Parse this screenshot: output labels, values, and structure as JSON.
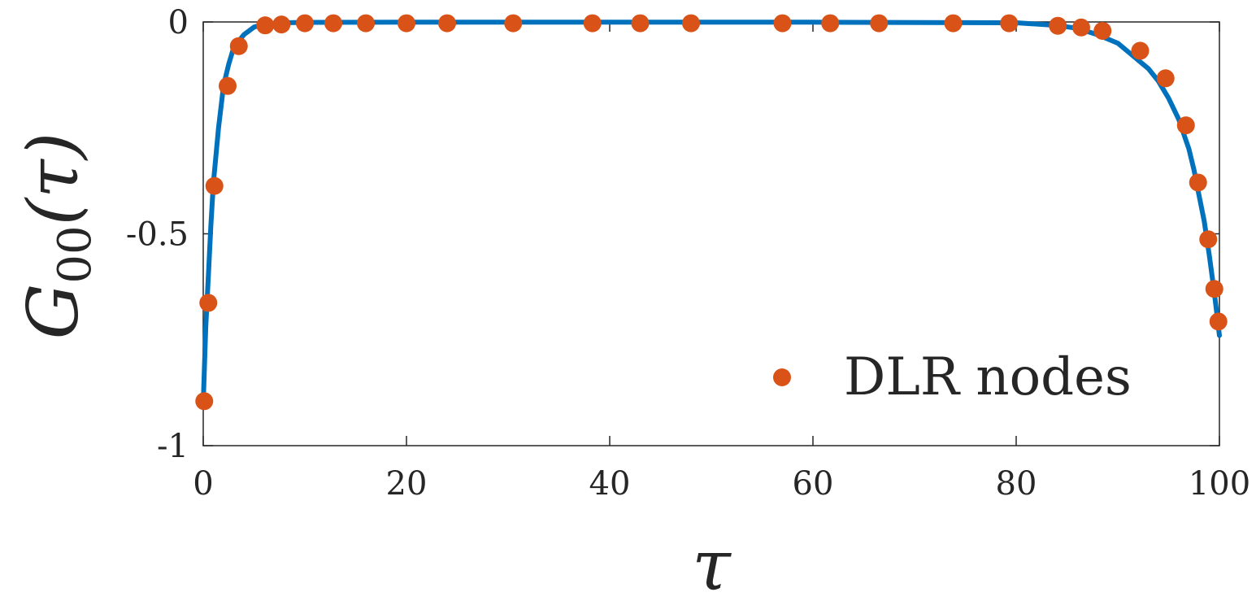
{
  "chart_data": {
    "type": "scatter",
    "xlabel": "τ",
    "ylabel_base": "G",
    "ylabel_subscript": "00",
    "ylabel_arg": "(τ)",
    "xlim": [
      0,
      100
    ],
    "ylim": [
      -1,
      0
    ],
    "xticks": [
      0,
      20,
      40,
      60,
      80,
      100
    ],
    "yticks": [
      0,
      -0.5,
      -1
    ],
    "xtick_labels": [
      "0",
      "20",
      "40",
      "60",
      "80",
      "100"
    ],
    "ytick_labels": [
      "0",
      "-0.5",
      "-1"
    ],
    "grid": false,
    "legend_position": "bottom-right",
    "curve": {
      "color": "#0072BD",
      "x": [
        0,
        0.25,
        0.5,
        0.75,
        1,
        1.5,
        2,
        2.5,
        3,
        4,
        5,
        6,
        8,
        10,
        20,
        40,
        60,
        80,
        84,
        86,
        88,
        90,
        91,
        92,
        93,
        94,
        95,
        96,
        97,
        97.5,
        98,
        98.5,
        99,
        99.5,
        100
      ],
      "y": [
        -0.9,
        -0.72,
        -0.6,
        -0.48,
        -0.38,
        -0.25,
        -0.15,
        -0.1,
        -0.06,
        -0.03,
        -0.012,
        -0.005,
        -0.002,
        -0.001,
        -0.0005,
        -0.0005,
        -0.0005,
        -0.002,
        -0.008,
        -0.015,
        -0.03,
        -0.05,
        -0.07,
        -0.09,
        -0.11,
        -0.14,
        -0.18,
        -0.23,
        -0.3,
        -0.35,
        -0.41,
        -0.47,
        -0.55,
        -0.64,
        -0.74
      ]
    },
    "series": [
      {
        "name": "DLR nodes",
        "color": "#D95319",
        "x": [
          0.1,
          0.5,
          1.1,
          2.4,
          3.5,
          6.1,
          7.7,
          10,
          12.8,
          16,
          20,
          24,
          30.5,
          38.3,
          43,
          48,
          57,
          61.7,
          66.5,
          73.8,
          79.3,
          84.1,
          86.4,
          88.5,
          92.2,
          94.7,
          96.7,
          97.9,
          98.9,
          99.5,
          99.9
        ],
        "y": [
          -0.895,
          -0.663,
          -0.387,
          -0.151,
          -0.057,
          -0.008,
          -0.006,
          -0.003,
          -0.003,
          -0.003,
          -0.003,
          -0.003,
          -0.003,
          -0.003,
          -0.003,
          -0.003,
          -0.003,
          -0.003,
          -0.003,
          -0.003,
          -0.003,
          -0.009,
          -0.013,
          -0.021,
          -0.068,
          -0.133,
          -0.244,
          -0.379,
          -0.513,
          -0.63,
          -0.707
        ]
      }
    ]
  }
}
